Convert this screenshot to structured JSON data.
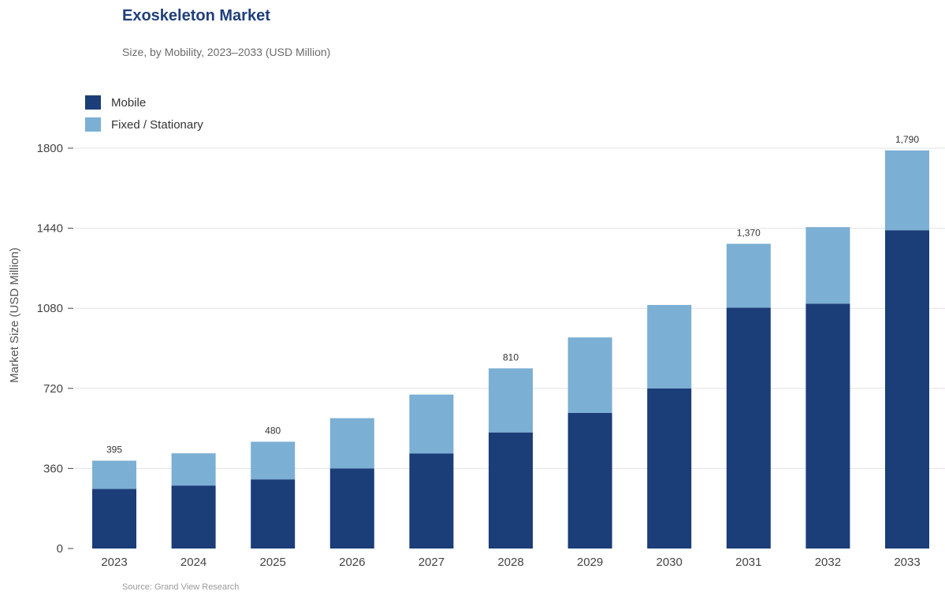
{
  "header": {
    "title": "Exoskeleton Market",
    "subtitle": "Size, by Mobility, 2023–2033 (USD Million)"
  },
  "footer": {
    "source": "Source: Grand View Research"
  },
  "colors": {
    "mobile": "#1b3d78",
    "fixed": "#7bafd4",
    "grid": "#e3e3e3",
    "axis": "#444444"
  },
  "chart_data": {
    "type": "bar",
    "stacked": true,
    "title": "Exoskeleton Market",
    "subtitle": "Size, by Mobility, 2023–2033 (USD Million)",
    "xlabel": "",
    "ylabel": "Market Size (USD Million)",
    "ylim": [
      0,
      1800
    ],
    "yticks": [
      0,
      360,
      720,
      1080,
      1440,
      1800
    ],
    "grid": true,
    "legend_position": "top-left",
    "categories": [
      "2023",
      "2024",
      "2025",
      "2026",
      "2027",
      "2028",
      "2029",
      "2030",
      "2031",
      "2032",
      "2033"
    ],
    "series": [
      {
        "name": "Mobile",
        "values": [
          268,
          283,
          311,
          360,
          427,
          522,
          610,
          720,
          1083,
          1101,
          1431
        ]
      },
      {
        "name": "Fixed / Stationary",
        "values": [
          127,
          145,
          169,
          226,
          265,
          288,
          339,
          375,
          287,
          344,
          359
        ]
      }
    ],
    "total_labels": [
      {
        "category": "2023",
        "text": "395"
      },
      {
        "category": "2025",
        "text": "480"
      },
      {
        "category": "2028",
        "text": "810"
      },
      {
        "category": "2031",
        "text": "1,370"
      },
      {
        "category": "2033",
        "text": "1,790"
      }
    ]
  }
}
